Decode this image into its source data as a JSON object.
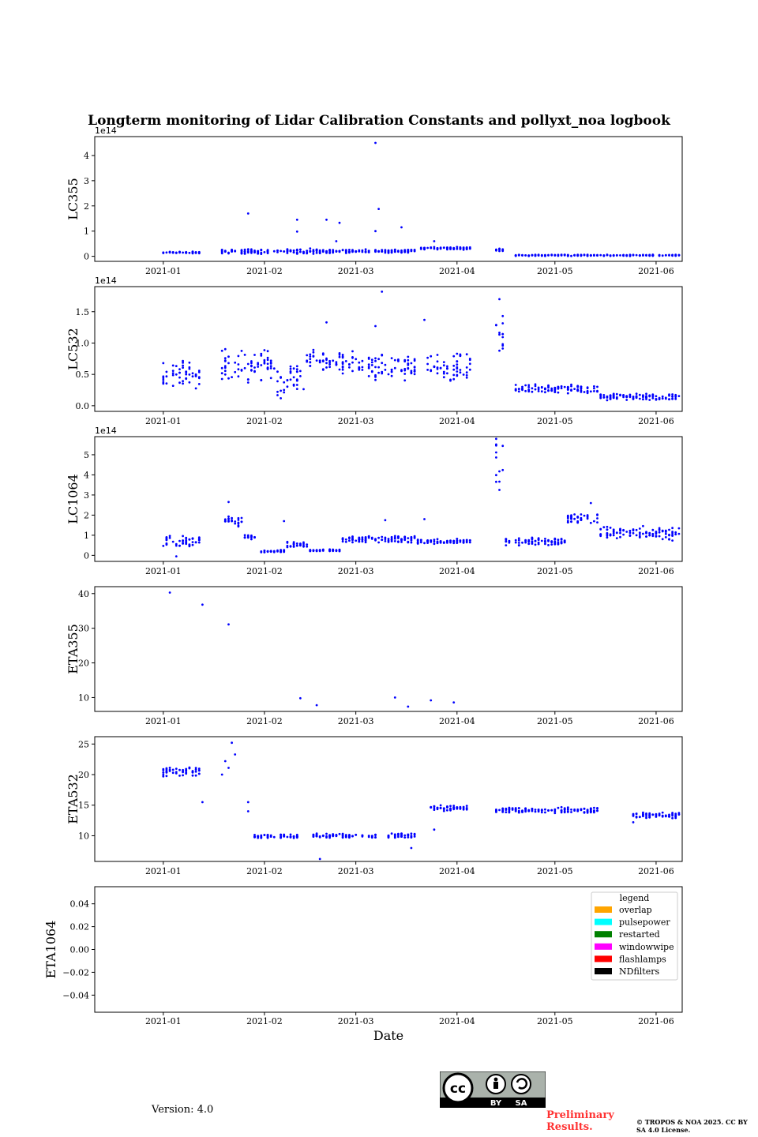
{
  "figure": {
    "title": "Longterm monitoring of Lidar Calibration Constants and pollyxt_noa logbook",
    "xlabel": "Date",
    "version": "Version: 4.0",
    "preliminary": "Preliminary Results.",
    "copyright": "© TROPOS & NOA 2025. CC BY SA 4.0 License.",
    "cc_badge": {
      "by": "BY",
      "sa": "SA",
      "icon": "cc-by-sa-icon"
    },
    "marker_color": "#0000ff"
  },
  "chart_data": [
    {
      "type": "scatter",
      "ylabel": "LC355",
      "multiplier": "1e14",
      "xlim": [
        "2020-12-11",
        "2021-06-09"
      ],
      "ylim": [
        -0.2,
        4.75
      ],
      "yticks": [
        0,
        1,
        2,
        3,
        4
      ],
      "xticks": [
        "2021-01",
        "2021-02",
        "2021-03",
        "2021-04",
        "2021-05",
        "2021-06"
      ],
      "segments": [
        {
          "from": "2021-01-01",
          "to": "2021-01-13",
          "base": 0.15,
          "spread": 0.05
        },
        {
          "from": "2021-01-19",
          "to": "2021-02-18",
          "base": 0.2,
          "spread": 0.12
        },
        {
          "from": "2021-02-18",
          "to": "2021-03-20",
          "base": 0.2,
          "spread": 0.08
        },
        {
          "from": "2021-03-21",
          "to": "2021-04-06",
          "base": 0.32,
          "spread": 0.06
        },
        {
          "from": "2021-04-13",
          "to": "2021-04-16",
          "base": 0.25,
          "spread": 0.08
        },
        {
          "from": "2021-04-19",
          "to": "2021-06-09",
          "base": 0.04,
          "spread": 0.03
        }
      ],
      "outliers": [
        [
          "2021-01-27",
          1.7
        ],
        [
          "2021-02-11",
          1.45
        ],
        [
          "2021-02-11",
          0.98
        ],
        [
          "2021-02-20",
          1.45
        ],
        [
          "2021-02-24",
          1.33
        ],
        [
          "2021-03-07",
          4.5
        ],
        [
          "2021-03-08",
          1.88
        ],
        [
          "2021-03-07",
          1.0
        ],
        [
          "2021-03-15",
          1.15
        ],
        [
          "2021-03-25",
          0.6
        ],
        [
          "2021-02-23",
          0.6
        ]
      ]
    },
    {
      "type": "scatter",
      "ylabel": "LC532",
      "multiplier": "1e14",
      "xlim": [
        "2020-12-11",
        "2021-06-09"
      ],
      "ylim": [
        -0.09,
        1.9
      ],
      "yticks": [
        0.0,
        0.5,
        1.0,
        1.5
      ],
      "xticks": [
        "2021-01",
        "2021-02",
        "2021-03",
        "2021-04",
        "2021-05",
        "2021-06"
      ],
      "segments": [
        {
          "from": "2021-01-01",
          "to": "2021-01-13",
          "base": 0.5,
          "spread": 0.25
        },
        {
          "from": "2021-01-19",
          "to": "2021-02-05",
          "base": 0.65,
          "spread": 0.3
        },
        {
          "from": "2021-02-05",
          "to": "2021-02-14",
          "base": 0.4,
          "spread": 0.3
        },
        {
          "from": "2021-02-14",
          "to": "2021-03-01",
          "base": 0.7,
          "spread": 0.2
        },
        {
          "from": "2021-03-01",
          "to": "2021-03-20",
          "base": 0.6,
          "spread": 0.25
        },
        {
          "from": "2021-03-23",
          "to": "2021-04-06",
          "base": 0.6,
          "spread": 0.25
        },
        {
          "from": "2021-04-13",
          "to": "2021-04-16",
          "base": 1.1,
          "spread": 0.35
        },
        {
          "from": "2021-04-19",
          "to": "2021-05-15",
          "base": 0.27,
          "spread": 0.08
        },
        {
          "from": "2021-05-15",
          "to": "2021-06-09",
          "base": 0.14,
          "spread": 0.06
        }
      ],
      "outliers": [
        [
          "2021-03-09",
          1.82
        ],
        [
          "2021-04-14",
          1.7
        ],
        [
          "2021-02-20",
          1.33
        ],
        [
          "2021-03-22",
          1.37
        ],
        [
          "2021-03-07",
          1.27
        ],
        [
          "2021-04-15",
          1.43
        ]
      ]
    },
    {
      "type": "scatter",
      "ylabel": "LC1064",
      "multiplier": "1e14",
      "xlim": [
        "2020-12-11",
        "2021-06-09"
      ],
      "ylim": [
        -0.3,
        5.9
      ],
      "yticks": [
        0,
        1,
        2,
        3,
        4,
        5
      ],
      "xticks": [
        "2021-01",
        "2021-02",
        "2021-03",
        "2021-04",
        "2021-05",
        "2021-06"
      ],
      "segments": [
        {
          "from": "2021-01-01",
          "to": "2021-01-13",
          "base": 0.7,
          "spread": 0.3
        },
        {
          "from": "2021-01-20",
          "to": "2021-01-26",
          "base": 1.7,
          "spread": 0.3
        },
        {
          "from": "2021-01-26",
          "to": "2021-01-30",
          "base": 0.9,
          "spread": 0.15
        },
        {
          "from": "2021-01-31",
          "to": "2021-02-08",
          "base": 0.2,
          "spread": 0.08
        },
        {
          "from": "2021-02-08",
          "to": "2021-02-15",
          "base": 0.55,
          "spread": 0.2
        },
        {
          "from": "2021-02-15",
          "to": "2021-02-25",
          "base": 0.25,
          "spread": 0.05
        },
        {
          "from": "2021-02-25",
          "to": "2021-03-20",
          "base": 0.8,
          "spread": 0.2
        },
        {
          "from": "2021-03-20",
          "to": "2021-04-06",
          "base": 0.7,
          "spread": 0.15
        },
        {
          "from": "2021-04-13",
          "to": "2021-04-16",
          "base": 4.5,
          "spread": 1.5
        },
        {
          "from": "2021-04-16",
          "to": "2021-05-05",
          "base": 0.7,
          "spread": 0.25
        },
        {
          "from": "2021-05-05",
          "to": "2021-05-15",
          "base": 1.8,
          "spread": 0.3
        },
        {
          "from": "2021-05-15",
          "to": "2021-06-09",
          "base": 1.1,
          "spread": 0.4
        }
      ],
      "outliers": [
        [
          "2021-01-21",
          2.65
        ],
        [
          "2021-02-07",
          1.7
        ],
        [
          "2021-03-10",
          1.75
        ],
        [
          "2021-03-22",
          1.8
        ],
        [
          "2021-05-12",
          2.6
        ],
        [
          "2021-01-05",
          -0.05
        ]
      ]
    },
    {
      "type": "scatter",
      "ylabel": "ETA355",
      "xlim": [
        "2020-12-11",
        "2021-06-09"
      ],
      "ylim": [
        6,
        42
      ],
      "yticks": [
        10,
        20,
        30,
        40
      ],
      "xticks": [
        "2021-01",
        "2021-02",
        "2021-03",
        "2021-04",
        "2021-05",
        "2021-06"
      ],
      "points": [
        [
          "2021-01-03",
          40.3
        ],
        [
          "2021-01-13",
          36.8
        ],
        [
          "2021-01-21",
          31.1
        ],
        [
          "2021-02-12",
          9.8
        ],
        [
          "2021-02-17",
          7.8
        ],
        [
          "2021-03-13",
          10.0
        ],
        [
          "2021-03-17",
          7.4
        ],
        [
          "2021-03-24",
          9.2
        ],
        [
          "2021-03-31",
          8.6
        ]
      ]
    },
    {
      "type": "scatter",
      "ylabel": "ETA532",
      "xlim": [
        "2020-12-11",
        "2021-06-09"
      ],
      "ylim": [
        5.8,
        26.2
      ],
      "yticks": [
        10,
        15,
        20,
        25
      ],
      "xticks": [
        "2021-01",
        "2021-02",
        "2021-03",
        "2021-04",
        "2021-05",
        "2021-06"
      ],
      "segments": [
        {
          "from": "2021-01-01",
          "to": "2021-01-13",
          "base": 20.5,
          "spread": 1.0
        },
        {
          "from": "2021-01-29",
          "to": "2021-02-12",
          "base": 9.9,
          "spread": 0.4
        },
        {
          "from": "2021-02-16",
          "to": "2021-03-08",
          "base": 10.0,
          "spread": 0.4
        },
        {
          "from": "2021-03-11",
          "to": "2021-03-20",
          "base": 10.0,
          "spread": 0.4
        },
        {
          "from": "2021-03-24",
          "to": "2021-04-05",
          "base": 14.5,
          "spread": 0.5
        },
        {
          "from": "2021-04-13",
          "to": "2021-05-15",
          "base": 14.2,
          "spread": 0.5
        },
        {
          "from": "2021-05-25",
          "to": "2021-06-09",
          "base": 13.3,
          "spread": 0.6
        }
      ],
      "outliers": [
        [
          "2021-01-22",
          25.2
        ],
        [
          "2021-01-23",
          23.3
        ],
        [
          "2021-01-20",
          22.2
        ],
        [
          "2021-01-19",
          20.0
        ],
        [
          "2021-01-21",
          21.1
        ],
        [
          "2021-01-27",
          15.5
        ],
        [
          "2021-01-27",
          14.0
        ],
        [
          "2021-01-13",
          15.5
        ],
        [
          "2021-02-18",
          6.2
        ],
        [
          "2021-03-18",
          8.0
        ],
        [
          "2021-03-25",
          11.0
        ],
        [
          "2021-05-25",
          12.2
        ]
      ]
    },
    {
      "type": "scatter",
      "ylabel": "ETA1064",
      "xlabel": "Date",
      "xlim": [
        "2020-12-11",
        "2021-06-09"
      ],
      "ylim": [
        -0.055,
        0.055
      ],
      "yticks": [
        -0.04,
        -0.02,
        0.0,
        0.02,
        0.04
      ],
      "ytick_labels": [
        "−0.04",
        "−0.02",
        "0.00",
        "0.02",
        "0.04"
      ],
      "xticks": [
        "2021-01",
        "2021-02",
        "2021-03",
        "2021-04",
        "2021-05",
        "2021-06"
      ],
      "points": [],
      "legend": {
        "title": "legend",
        "placement": "top-right",
        "entries": [
          {
            "label": "overlap",
            "color": "#ffa500"
          },
          {
            "label": "pulsepower",
            "color": "#00ffff"
          },
          {
            "label": "restarted",
            "color": "#008000"
          },
          {
            "label": "windowwipe",
            "color": "#ff00ff"
          },
          {
            "label": "flashlamps",
            "color": "#ff0000"
          },
          {
            "label": "NDfilters",
            "color": "#000000"
          }
        ]
      }
    }
  ]
}
